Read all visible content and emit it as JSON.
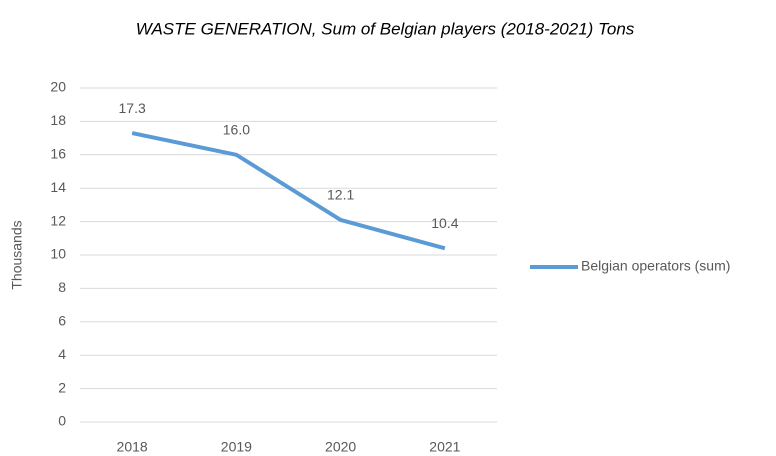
{
  "chart_data": {
    "type": "line",
    "title": "WASTE GENERATION, Sum of Belgian players (2018-2021) Tons",
    "y_label": "Thousands",
    "categories": [
      "2018",
      "2019",
      "2020",
      "2021"
    ],
    "series": [
      {
        "name": "Belgian operators (sum)",
        "color": "#5b9bd5",
        "values": [
          17.3,
          16.0,
          12.1,
          10.4
        ],
        "value_labels": [
          "17.3",
          "16.0",
          "12.1",
          "10.4"
        ]
      }
    ],
    "ylim": [
      0,
      20
    ],
    "yticks": [
      0,
      2,
      4,
      6,
      8,
      10,
      12,
      14,
      16,
      18,
      20
    ],
    "grid": true,
    "legend": "right"
  }
}
